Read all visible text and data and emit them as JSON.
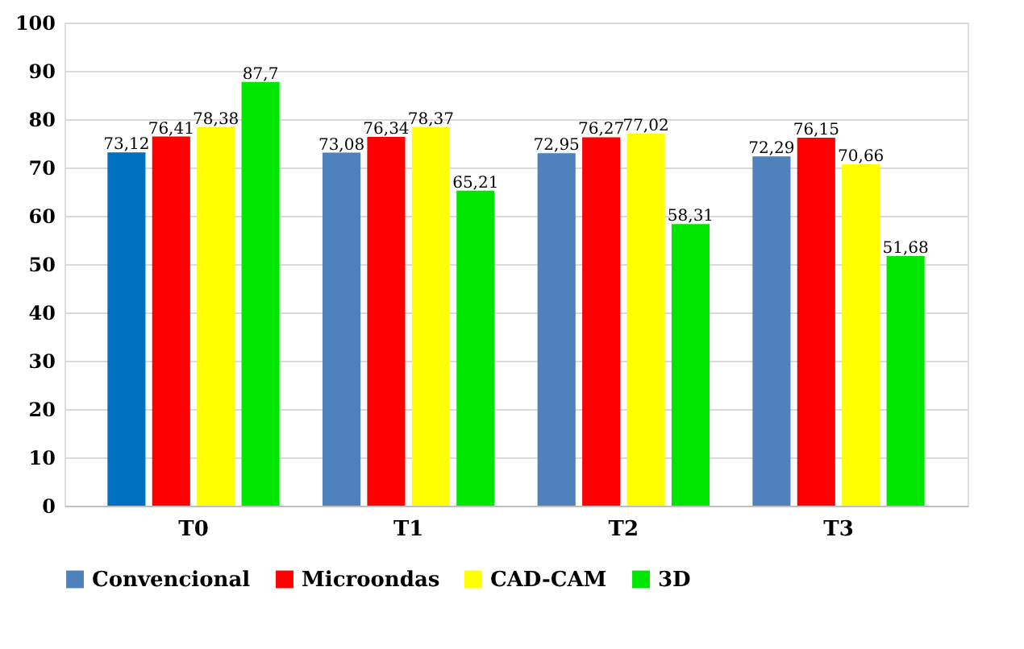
{
  "chart_data": {
    "type": "bar",
    "categories": [
      "T0",
      "T1",
      "T2",
      "T3"
    ],
    "series": [
      {
        "name": "Convencional",
        "color": "#4f81bd",
        "colors": [
          "#0070c0",
          "#4f81bd",
          "#4f81bd",
          "#4f81bd"
        ],
        "values": [
          73.12,
          73.08,
          72.95,
          72.29
        ],
        "value_labels": [
          "73,12",
          "73,08",
          "72,95",
          "72,29"
        ]
      },
      {
        "name": "Microondas",
        "color": "#ff0000",
        "values": [
          76.41,
          76.34,
          76.27,
          76.15
        ],
        "value_labels": [
          "76,41",
          "76,34",
          "76,27",
          "76,15"
        ]
      },
      {
        "name": "CAD-CAM",
        "color": "#ffff00",
        "values": [
          78.38,
          78.37,
          77.02,
          70.66
        ],
        "value_labels": [
          "78,38",
          "78,37",
          "77,02",
          "70,66"
        ]
      },
      {
        "name": "3D",
        "color": "#00e600",
        "values": [
          87.7,
          65.21,
          58.31,
          51.68
        ],
        "value_labels": [
          "87,7",
          "65,21",
          "58,31",
          "51,68"
        ]
      }
    ],
    "ylim": [
      0,
      100
    ],
    "yticks": [
      0,
      10,
      20,
      30,
      40,
      50,
      60,
      70,
      80,
      90,
      100
    ],
    "grid": "y",
    "legend": "bottom"
  }
}
